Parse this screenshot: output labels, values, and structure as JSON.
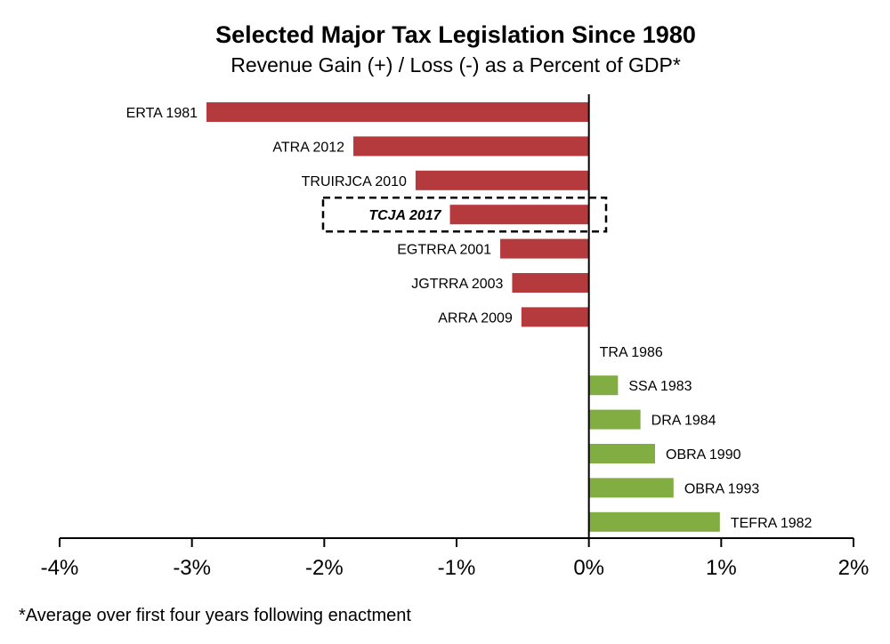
{
  "chart_data": {
    "type": "bar",
    "orientation": "horizontal",
    "title": "Selected Major Tax Legislation Since 1980",
    "subtitle": "Revenue Gain (+) / Loss (-) as a Percent of GDP*",
    "footnote": "*Average over first four years following enactment",
    "categories": [
      "ERTA 1981",
      "ATRA 2012",
      "TRUIRJCA 2010",
      "TCJA 2017",
      "EGTRRA 2001",
      "JGTRRA 2003",
      "ARRA 2009",
      "TRA 1986",
      "SSA 1983",
      "DRA 1984",
      "OBRA 1990",
      "OBRA 1993",
      "TEFRA 1982"
    ],
    "values": [
      -2.89,
      -1.78,
      -1.31,
      -1.05,
      -0.67,
      -0.58,
      -0.51,
      0.0,
      0.22,
      0.39,
      0.5,
      0.64,
      0.99
    ],
    "highlighted": "TCJA 2017",
    "xlim": [
      -4,
      2
    ],
    "xticks": [
      -4,
      -3,
      -2,
      -1,
      0,
      1,
      2
    ],
    "xtick_labels": [
      "-4%",
      "-3%",
      "-2%",
      "-1%",
      "0%",
      "1%",
      "2%"
    ],
    "colors": {
      "negative": "#b43a3e",
      "positive": "#82ad43",
      "axis": "#000000"
    },
    "grid": false,
    "legend": "none"
  }
}
